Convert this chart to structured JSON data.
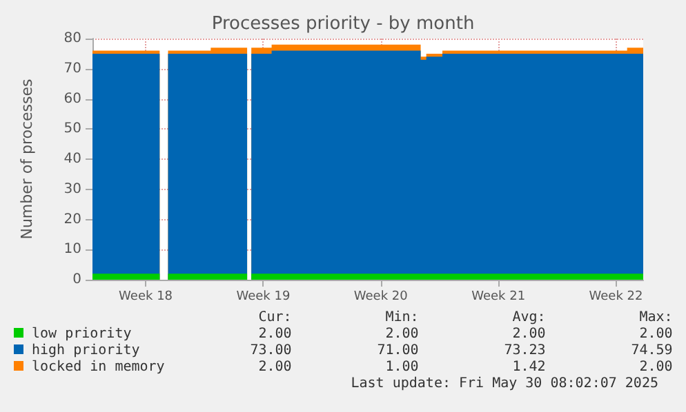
{
  "chart_data": {
    "type": "area",
    "title": "Processes priority - by month",
    "ylabel": "Number of processes",
    "stacked": true,
    "grid": true,
    "legend": "bottom",
    "x": [
      "2025-04-27T20:00",
      "2025-05-01T20:00",
      "2025-05-02T02:00",
      "2025-05-02T08:00",
      "2025-05-04T21:00",
      "2025-05-04T21:00",
      "2025-05-07T01:00",
      "2025-05-07T04:00",
      "2025-05-07T07:00",
      "2025-05-08T12:00",
      "2025-05-08T12:00",
      "2025-05-17T09:00",
      "2025-05-17T09:00",
      "2025-05-17T17:00",
      "2025-05-17T17:00",
      "2025-05-18T16:00",
      "2025-05-18T16:00",
      "2025-05-29T16:00",
      "2025-05-29T16:00",
      "2025-05-30T15:00"
    ],
    "series": [
      {
        "name": "low priority",
        "color": "#00cc00",
        "values": [
          2,
          2,
          null,
          2,
          2,
          2,
          2,
          null,
          2,
          2,
          2,
          2,
          2,
          2,
          2,
          2,
          2,
          2,
          2,
          2
        ]
      },
      {
        "name": "high priority",
        "color": "#0066b3",
        "values": [
          73,
          73,
          null,
          73,
          73,
          73,
          73,
          null,
          73,
          73,
          74,
          74,
          71,
          71,
          72,
          72,
          73,
          73,
          73,
          73
        ]
      },
      {
        "name": "locked in memory",
        "color": "#ff8000",
        "values": [
          1,
          1,
          null,
          1,
          1,
          2,
          2,
          null,
          2,
          2,
          2,
          2,
          1,
          1,
          1,
          1,
          1,
          1,
          2,
          2
        ]
      }
    ],
    "xlim": [
      "2025-04-27T20:00",
      "2025-05-30T15:00"
    ],
    "xticks": [
      {
        "value": "2025-05-01T00:00",
        "label": "Week 18"
      },
      {
        "value": "2025-05-08T00:00",
        "label": "Week 19"
      },
      {
        "value": "2025-05-15T00:00",
        "label": "Week 20"
      },
      {
        "value": "2025-05-22T00:00",
        "label": "Week 21"
      },
      {
        "value": "2025-05-29T00:00",
        "label": "Week 22"
      }
    ],
    "ylim": [
      0,
      80
    ],
    "yticks": [
      0,
      10,
      20,
      30,
      40,
      50,
      60,
      70,
      80
    ],
    "annotations": [
      "Cur:",
      "Min:",
      "Avg:",
      "Max:",
      "2.00",
      "2.00",
      "2.00",
      "2.00",
      "73.00",
      "71.00",
      "73.23",
      "74.59",
      "2.00",
      "1.00",
      "1.42",
      "2.00",
      "Last update: Fri May 30 08:02:07 2025"
    ]
  }
}
